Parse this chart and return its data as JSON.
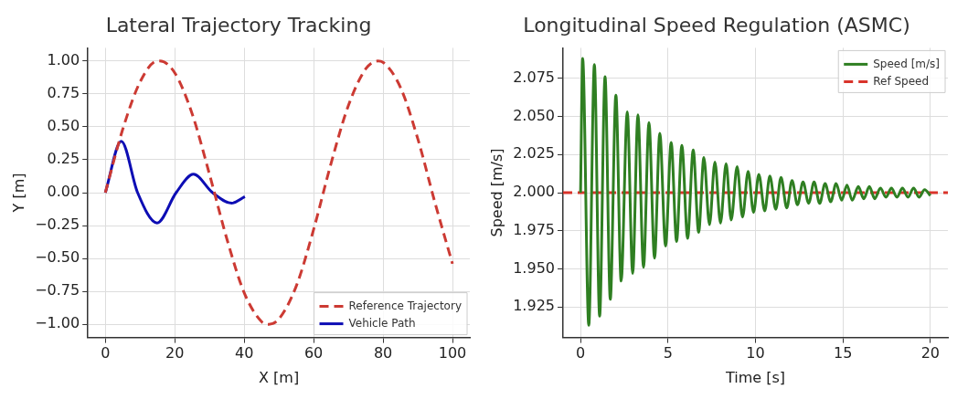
{
  "chart_data": [
    {
      "type": "line",
      "title": "Lateral Trajectory Tracking",
      "xlabel": "X [m]",
      "ylabel": "Y [m]",
      "xlim": [
        -5,
        105
      ],
      "ylim": [
        -1.1,
        1.1
      ],
      "xticks": [
        0,
        20,
        40,
        60,
        80,
        100
      ],
      "yticks": [
        {
          "value": -1,
          "label": "−1.00"
        },
        {
          "value": -0.75,
          "label": "−0.75"
        },
        {
          "value": -0.5,
          "label": "−0.50"
        },
        {
          "value": -0.25,
          "label": "−0.25"
        },
        {
          "value": 0,
          "label": "0.00"
        },
        {
          "value": 0.25,
          "label": "0.25"
        },
        {
          "value": 0.5,
          "label": "0.50"
        },
        {
          "value": 0.75,
          "label": "0.75"
        },
        {
          "value": 1,
          "label": "1.00"
        }
      ],
      "grid": true,
      "legend": "bottom right",
      "marker": "none",
      "series": [
        {
          "name": "Reference Trajectory",
          "color": "#cc3a33",
          "line_style": "dashed",
          "x": [
            0,
            5,
            10,
            15,
            15.7,
            20,
            25,
            30,
            35,
            40,
            45,
            47.1,
            50,
            55,
            60,
            65,
            70,
            75,
            78.5,
            80,
            85,
            90,
            95,
            100
          ],
          "values": [
            0,
            0.48,
            0.84,
            1.0,
            1.0,
            0.91,
            0.6,
            0.14,
            -0.35,
            -0.76,
            -0.98,
            -1.0,
            -0.96,
            -0.71,
            -0.28,
            0.22,
            0.66,
            0.94,
            1.0,
            0.99,
            0.8,
            0.41,
            -0.08,
            -0.54
          ]
        },
        {
          "name": "Vehicle Path",
          "color": "#0d0db4",
          "line_style": "solid",
          "x": [
            0,
            4.6,
            9.3,
            14.9,
            20.4,
            25.4,
            30.9,
            36.4,
            40.2
          ],
          "values": [
            0,
            0.39,
            0,
            -0.23,
            0,
            0.14,
            0,
            -0.08,
            -0.03
          ]
        }
      ]
    },
    {
      "type": "line",
      "title": "Longitudinal Speed Regulation (ASMC)",
      "xlabel": "Time [s]",
      "ylabel": "Speed [m/s]",
      "xlim": [
        -1,
        21
      ],
      "ylim": [
        1.905,
        2.095
      ],
      "xticks": [
        0,
        5,
        10,
        15,
        20
      ],
      "yticks": [
        1.925,
        {
          "value": 1.95,
          "label": "1.950"
        },
        1.975,
        {
          "value": 2,
          "label": "2.000"
        },
        2.025,
        {
          "value": 2.05,
          "label": "2.050"
        },
        2.075
      ],
      "grid": true,
      "legend": "top right",
      "marker": "none",
      "series": [
        {
          "name": "Speed [m/s]",
          "color": "#2f7f22",
          "line_style": "solid",
          "x": [
            0,
            0.12,
            0.47,
            0.79,
            1.09,
            1.4,
            1.7,
            2.02,
            2.32,
            2.67,
            2.98,
            3.28,
            3.6,
            3.91,
            4.23,
            4.53,
            4.86,
            5.18,
            5.49,
            5.79,
            6.12,
            6.44,
            6.75,
            7.05,
            7.37,
            7.68,
            8.0,
            8.32,
            8.61,
            8.95,
            9.26,
            9.58,
            9.89,
            10.19,
            10.53,
            10.82,
            11.16,
            11.46,
            11.79,
            12.09,
            12.4,
            12.72,
            13.04,
            13.35,
            13.67,
            13.98,
            14.3,
            14.61,
            14.93,
            15.23,
            15.53,
            15.88,
            16.19,
            16.51,
            16.82,
            17.14,
            17.46,
            17.77,
            18.09,
            18.4,
            18.72,
            19.04,
            19.35,
            19.67,
            20.0
          ],
          "values": [
            2.0,
            2.088,
            1.913,
            2.084,
            1.919,
            2.076,
            1.93,
            2.064,
            1.942,
            2.053,
            1.947,
            2.051,
            1.951,
            2.046,
            1.957,
            2.039,
            1.965,
            2.033,
            1.968,
            2.031,
            1.97,
            2.028,
            1.974,
            2.023,
            1.979,
            2.02,
            1.98,
            2.019,
            1.982,
            2.017,
            1.984,
            2.014,
            1.987,
            2.012,
            1.988,
            2.011,
            1.989,
            2.01,
            1.99,
            2.008,
            1.992,
            2.007,
            1.993,
            2.007,
            1.993,
            2.006,
            1.994,
            2.006,
            1.995,
            2.005,
            1.995,
            2.004,
            1.996,
            2.004,
            1.996,
            2.003,
            1.997,
            2.003,
            1.997,
            2.003,
            1.997,
            2.003,
            1.997,
            2.002,
            1.998
          ]
        },
        {
          "name": "Ref Speed",
          "color": "#d9342b",
          "line_style": "dashed",
          "x": [
            -1,
            21
          ],
          "values": [
            2.0,
            2.0
          ]
        }
      ]
    }
  ]
}
